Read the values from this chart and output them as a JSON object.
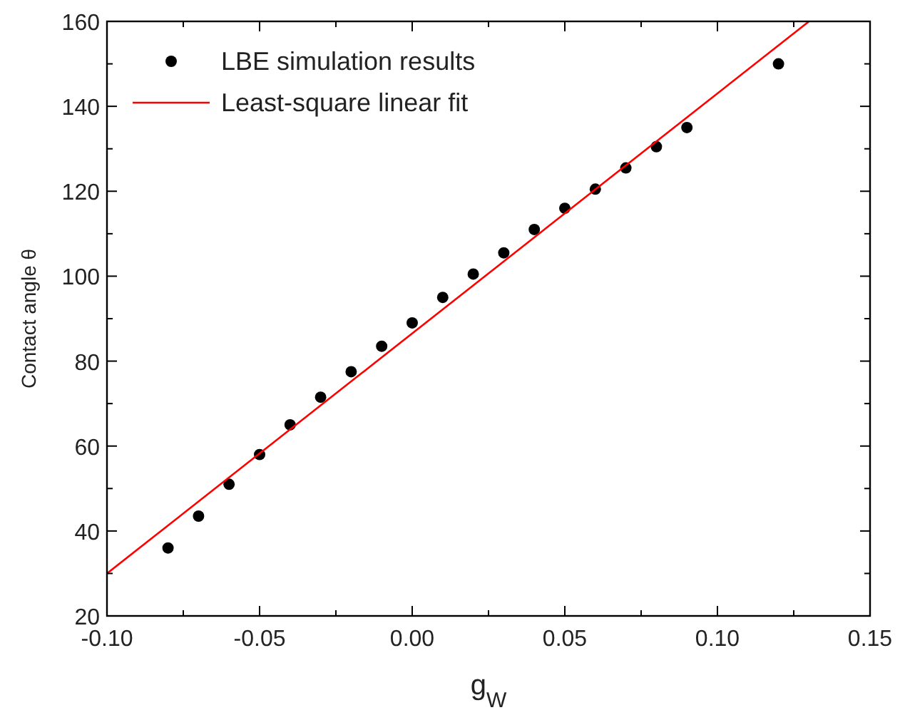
{
  "chart_data": {
    "type": "scatter",
    "xlabel": "g$_{W}$",
    "ylabel": "Contact angle θ",
    "xlim": [
      -0.1,
      0.15
    ],
    "ylim": [
      20,
      160
    ],
    "xticks": [
      {
        "value": -0.1,
        "label": "-0.10"
      },
      {
        "value": -0.05,
        "label": "-0.05"
      },
      {
        "value": 0,
        "label": "0.00"
      },
      {
        "value": 0.05,
        "label": "0.05"
      },
      {
        "value": 0.1,
        "label": "0.10"
      },
      {
        "value": 0.15,
        "label": "0.15"
      }
    ],
    "yticks": [
      20,
      40,
      60,
      80,
      100,
      120,
      140,
      160
    ],
    "legend": "top left",
    "grid": false,
    "series": [
      {
        "name": "LBE simulation results",
        "color": "#000000",
        "marker": "circle",
        "x": [
          -0.08,
          -0.07,
          -0.06,
          -0.05,
          -0.04,
          -0.03,
          -0.02,
          -0.01,
          0,
          0.01,
          0.02,
          0.03,
          0.04,
          0.05,
          0.06,
          0.07,
          0.08,
          0.09,
          0.12
        ],
        "values": [
          36,
          43.5,
          51,
          58,
          65,
          71.5,
          77.5,
          83.5,
          89,
          95,
          100.5,
          105.5,
          111,
          116,
          120.5,
          125.5,
          130.5,
          135,
          150
        ]
      },
      {
        "name": "Least-square linear fit",
        "type": "line",
        "color": "#ff0000",
        "marker": "none",
        "line_style": "solid",
        "x": [
          -0.1,
          0.13
        ],
        "values": [
          30,
          160
        ]
      }
    ]
  }
}
